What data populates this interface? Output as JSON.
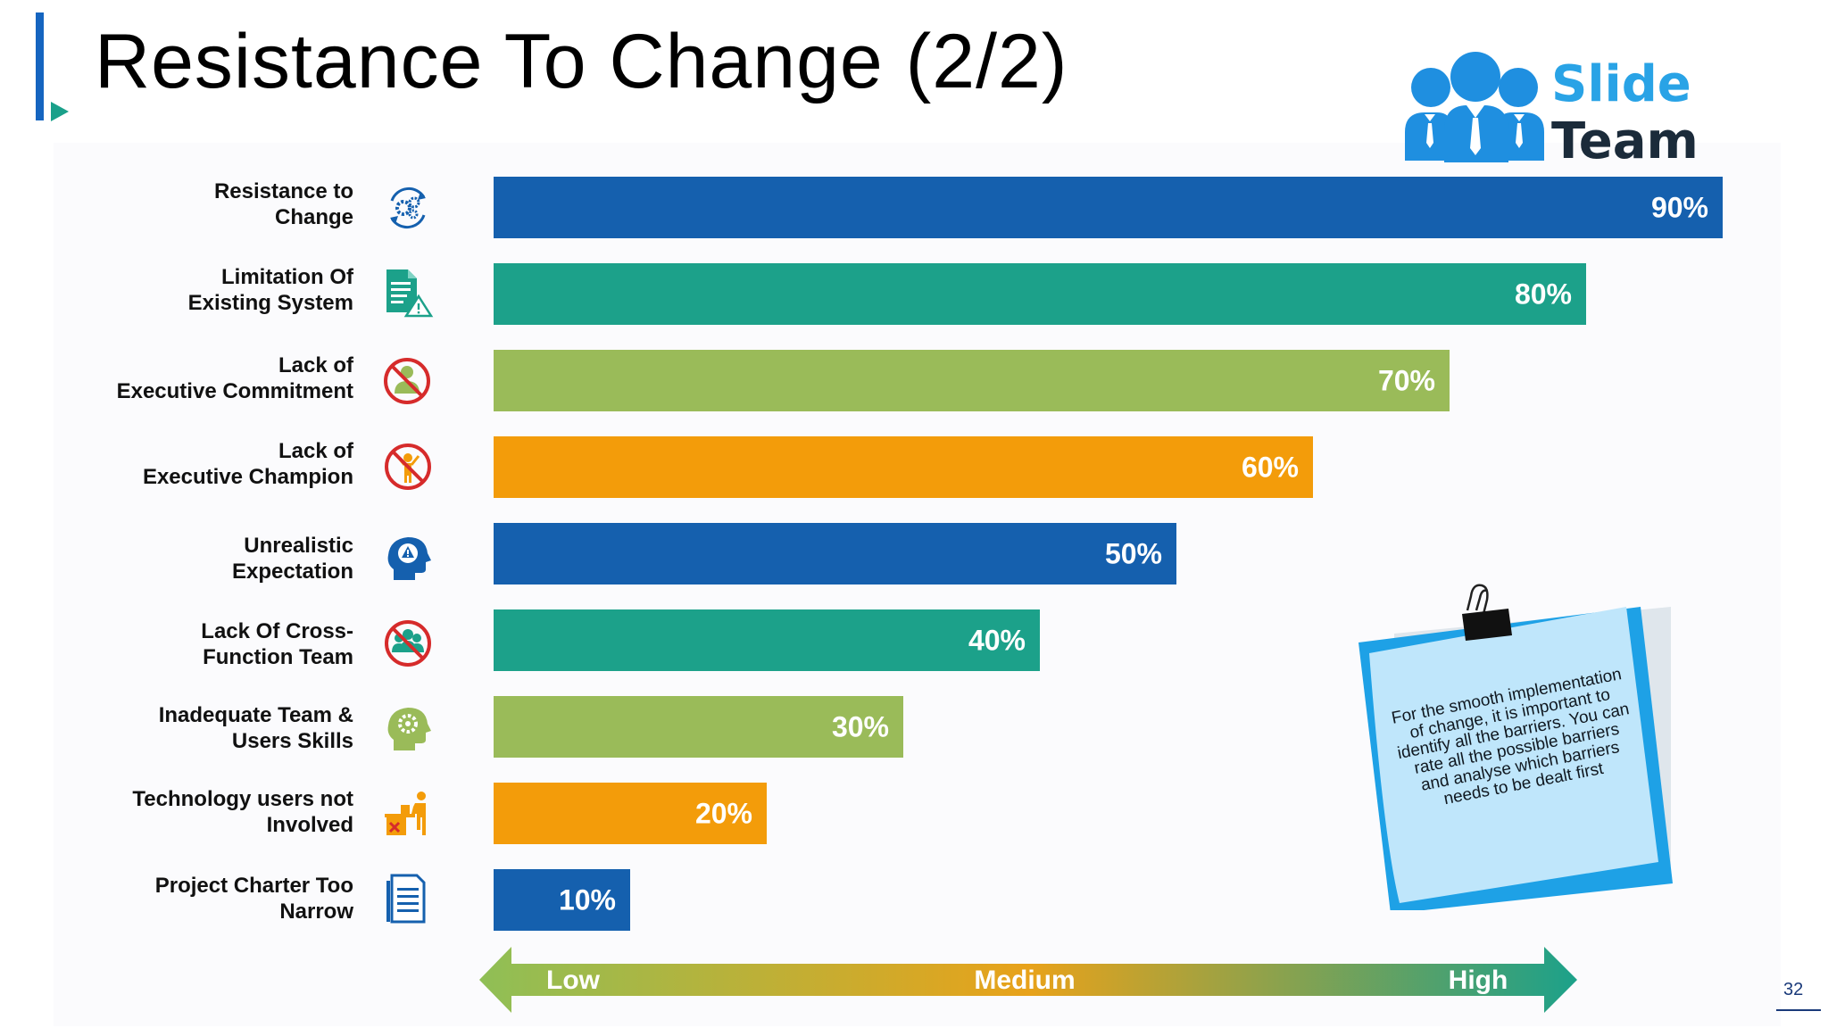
{
  "slide": {
    "title": "Resistance To Change (2/2)",
    "page_number": "32"
  },
  "logo": {
    "line1": "Slide",
    "line2": "Team"
  },
  "note": {
    "text": "For the smooth implementation of change, it is important to identify all the barriers. You can rate all the possible barriers and analyse which barriers needs to be dealt first"
  },
  "scale_arrow": {
    "low": "Low",
    "medium": "Medium",
    "high": "High"
  },
  "colors": {
    "blue": "#1560ae",
    "teal": "#1ca18a",
    "green": "#9abb59",
    "orange": "#f39c0a",
    "red": "#d62b2b"
  },
  "chart_data": {
    "type": "bar",
    "orientation": "horizontal",
    "categories": [
      "Resistance to\nChange",
      "Limitation Of\nExisting System",
      "Lack of\nExecutive Commitment",
      "Lack of\nExecutive Champion",
      "Unrealistic\nExpectation",
      "Lack Of Cross-\nFunction Team",
      "Inadequate Team &\nUsers Skills",
      "Technology users not\nInvolved",
      "Project Charter Too\nNarrow"
    ],
    "values": [
      90,
      80,
      70,
      60,
      50,
      40,
      30,
      20,
      10
    ],
    "value_labels": [
      "90%",
      "80%",
      "70%",
      "60%",
      "50%",
      "40%",
      "30%",
      "20%",
      "10%"
    ],
    "bar_colors": [
      "blue",
      "teal",
      "green",
      "orange",
      "blue",
      "teal",
      "green",
      "orange",
      "blue"
    ],
    "icons": [
      "gears-cycle-icon",
      "document-warning-icon",
      "no-person-icon",
      "no-champion-icon",
      "head-warning-icon",
      "no-team-icon",
      "head-gear-icon",
      "desk-user-x-icon",
      "document-icon"
    ],
    "xlim": [
      0,
      90
    ],
    "title": "",
    "xlabel": "",
    "ylabel": ""
  }
}
